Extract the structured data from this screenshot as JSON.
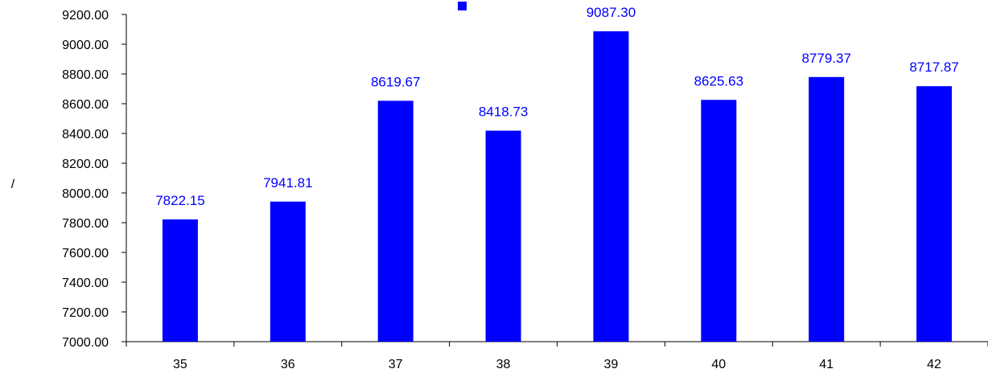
{
  "chart_data": {
    "type": "bar",
    "title": "",
    "xlabel": "",
    "ylabel": "/",
    "categories": [
      "35",
      "36",
      "37",
      "38",
      "39",
      "40",
      "41",
      "42"
    ],
    "series": [
      {
        "values": [
          7822.15,
          7941.81,
          8619.67,
          8418.73,
          9087.3,
          8625.63,
          8779.37,
          8717.87
        ],
        "value_labels": [
          "7822.15",
          "7941.81",
          "8619.67",
          "8418.73",
          "9087.30",
          "8625.63",
          "8779.37",
          "8717.87"
        ]
      }
    ],
    "ylim": [
      7000,
      9200
    ],
    "ytick_step": 200,
    "ytick_labels": [
      "7000.00",
      "7200.00",
      "7400.00",
      "7600.00",
      "7800.00",
      "8000.00",
      "8200.00",
      "8400.00",
      "8600.00",
      "8800.00",
      "9000.00",
      "9200.00"
    ],
    "grid": false,
    "legend": "top-center",
    "colors": {
      "bar": "#0000ff",
      "label": "#0000ff",
      "axis": "#000000"
    }
  }
}
